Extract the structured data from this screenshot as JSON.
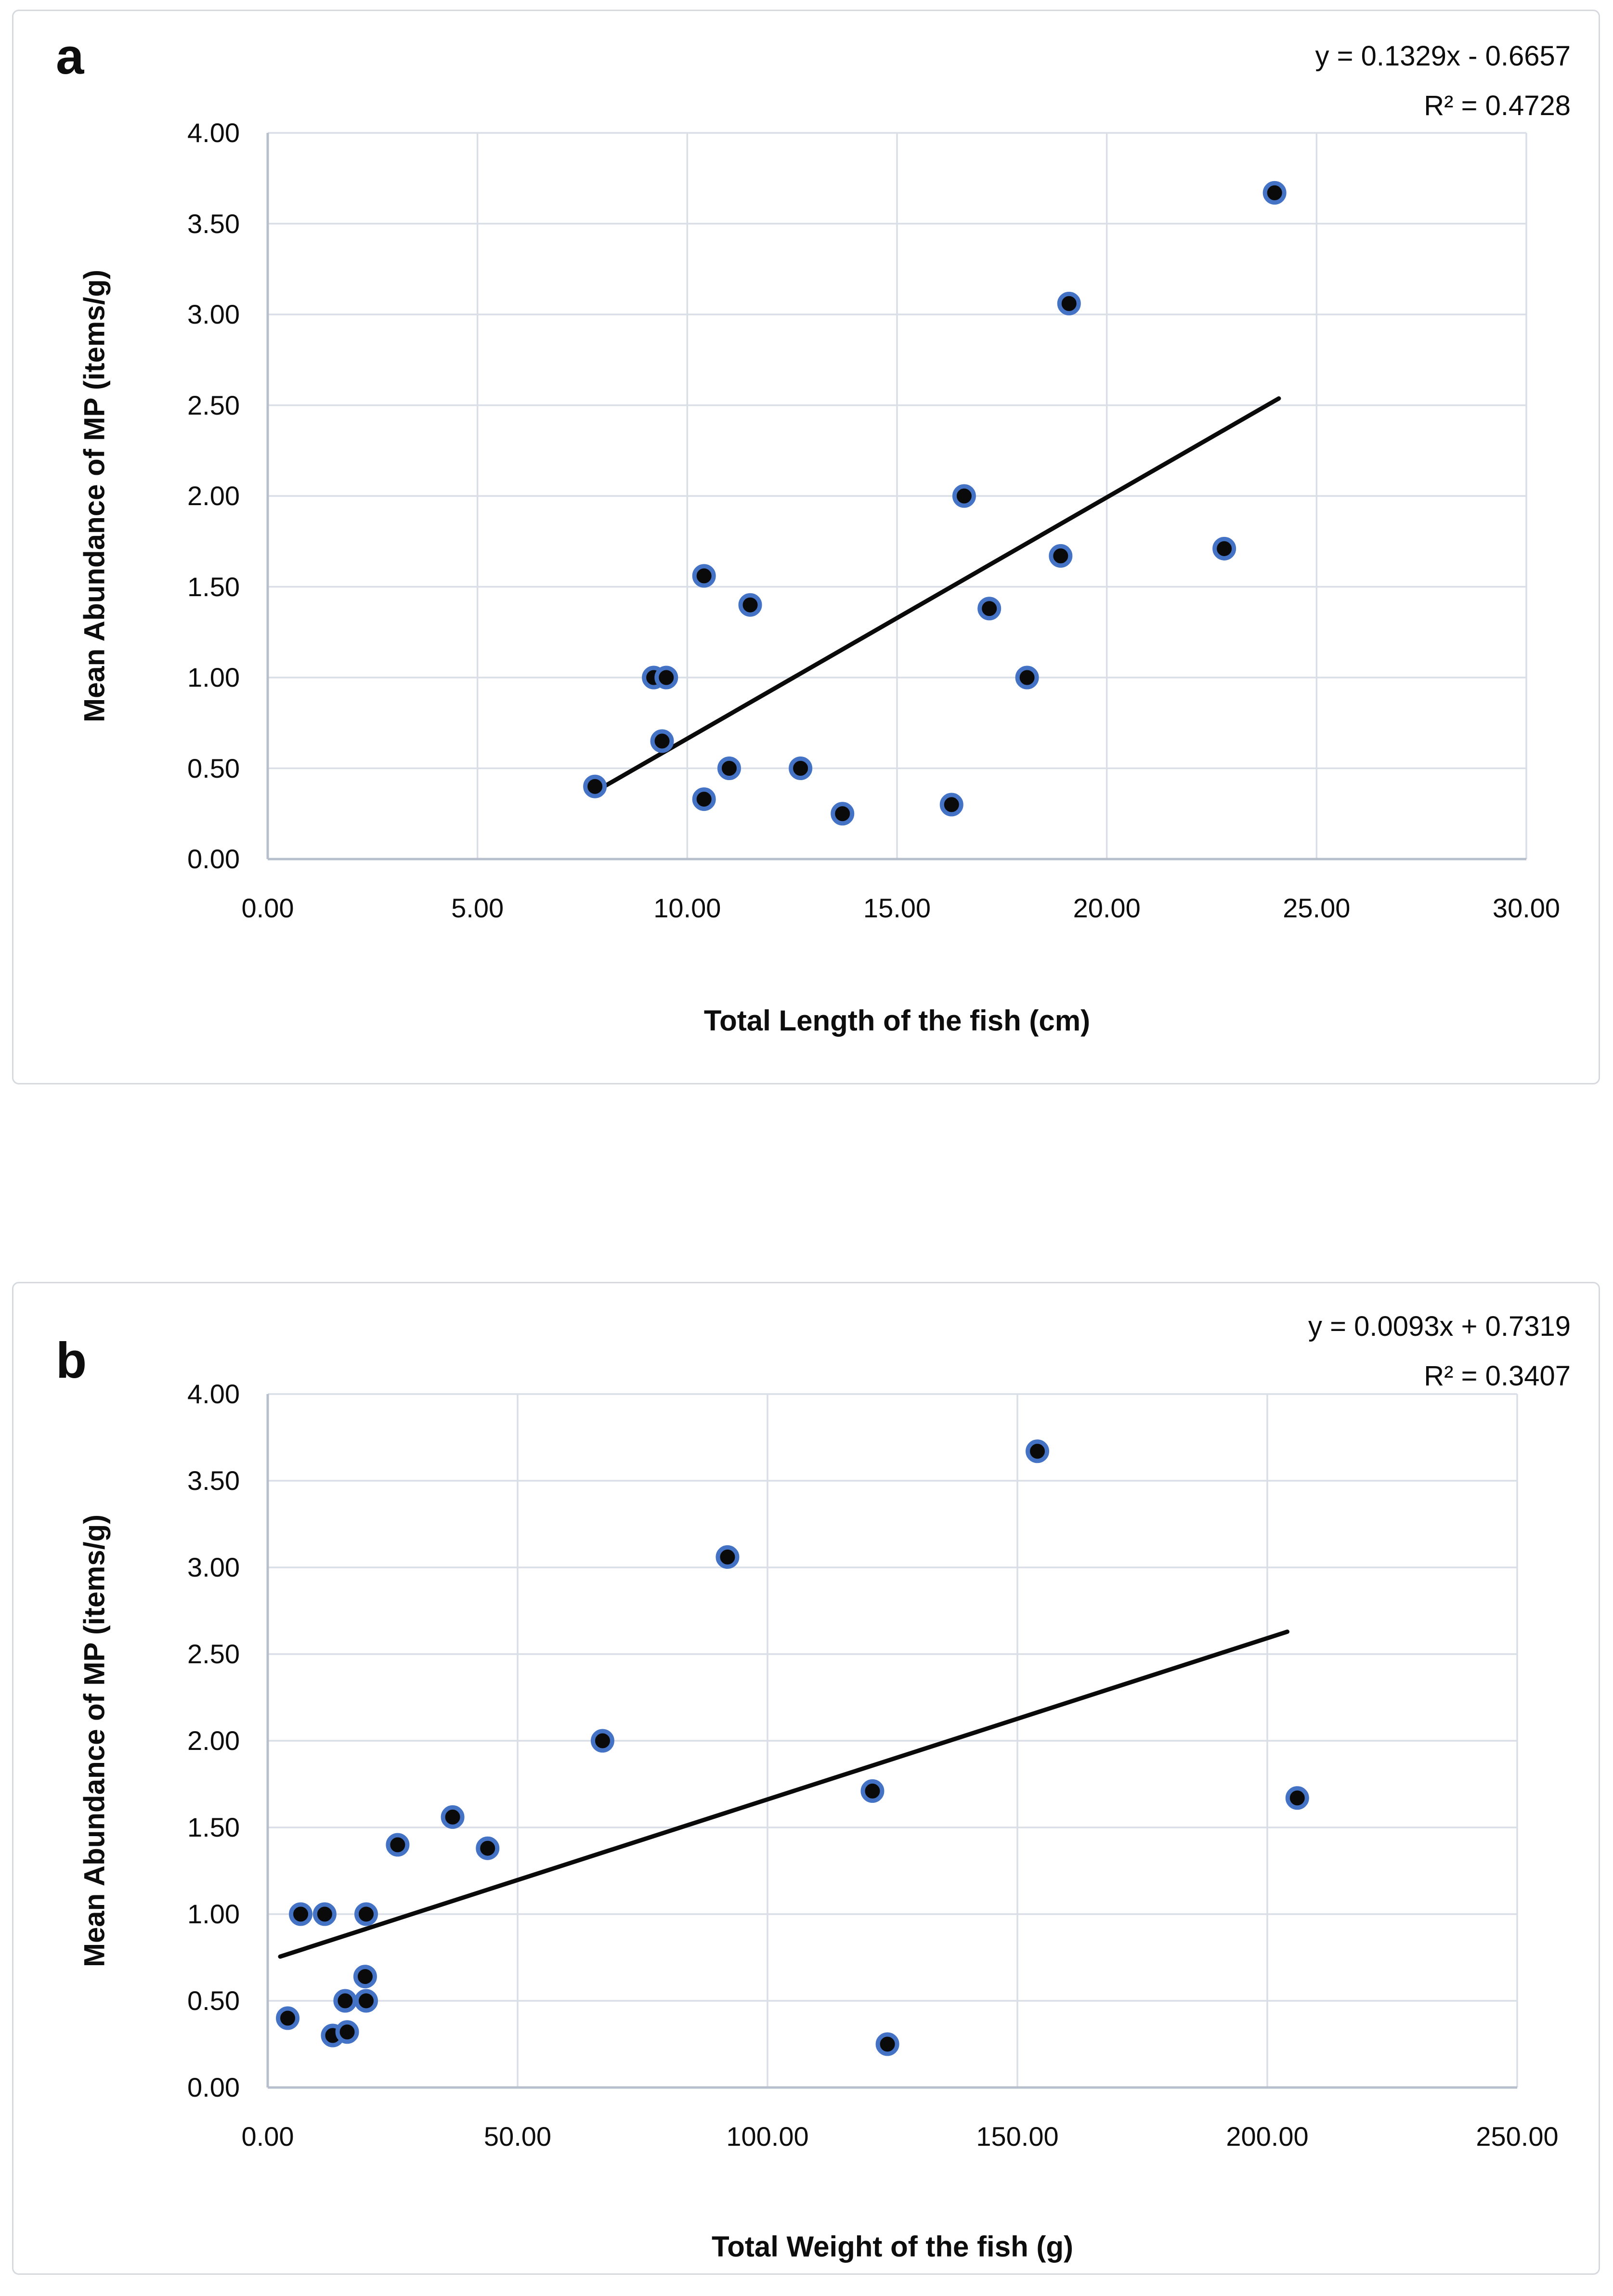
{
  "colors": {
    "marker_ring": "#4472C4",
    "marker_fill": "#0a0a0a",
    "gridline": "#dadfe7",
    "axis_line": "#b7bfcc",
    "trendline": "#0a0a0a",
    "panel_border": "#d6d9de",
    "text": "#0d0d0d"
  },
  "chart_data": [
    {
      "type": "scatter",
      "panel_label": "a",
      "annotation_line1": "y = 0.1329x - 0.6657",
      "annotation_line2": "R² = 0.4728",
      "xlabel": "Total Length of the fish (cm)",
      "ylabel": "Mean Abundance of MP (items/g)",
      "xlim": [
        0,
        30
      ],
      "ylim": [
        0,
        4
      ],
      "x_tick_labels": [
        "0.00",
        "5.00",
        "10.00",
        "15.00",
        "20.00",
        "25.00",
        "30.00"
      ],
      "y_tick_labels": [
        "4.00",
        "3.50",
        "3.00",
        "2.50",
        "2.00",
        "1.50",
        "1.00",
        "0.50",
        "0.00"
      ],
      "grid": true,
      "legend": false,
      "points": [
        [
          7.8,
          0.4
        ],
        [
          9.2,
          1.0
        ],
        [
          9.4,
          0.65
        ],
        [
          9.5,
          1.0
        ],
        [
          10.4,
          0.33
        ],
        [
          10.4,
          1.56
        ],
        [
          11.0,
          0.5
        ],
        [
          11.5,
          1.4
        ],
        [
          12.7,
          0.5
        ],
        [
          13.7,
          0.25
        ],
        [
          16.3,
          0.3
        ],
        [
          16.6,
          2.0
        ],
        [
          17.2,
          1.38
        ],
        [
          18.1,
          1.0
        ],
        [
          18.9,
          1.67
        ],
        [
          19.1,
          3.06
        ],
        [
          22.8,
          1.71
        ],
        [
          24.0,
          3.67
        ]
      ],
      "trendline": {
        "slope": 0.1329,
        "intercept": -0.6657,
        "r_squared": 0.4728,
        "x_start": 7.75,
        "x_end": 24.1
      }
    },
    {
      "type": "scatter",
      "panel_label": "b",
      "annotation_line1": "y = 0.0093x + 0.7319",
      "annotation_line2": "R² = 0.3407",
      "xlabel": "Total Weight of the fish (g)",
      "ylabel": "Mean Abundance of MP (items/g)",
      "xlim": [
        0,
        250
      ],
      "ylim": [
        0,
        4
      ],
      "x_tick_labels": [
        "0.00",
        "50.00",
        "100.00",
        "150.00",
        "200.00",
        "250.00"
      ],
      "y_tick_labels": [
        "4.00",
        "3.50",
        "3.00",
        "2.50",
        "2.00",
        "1.50",
        "1.00",
        "0.50",
        "0.00"
      ],
      "grid": true,
      "legend": false,
      "points": [
        [
          4,
          0.4
        ],
        [
          6.6,
          1.0
        ],
        [
          11.4,
          1.0
        ],
        [
          13,
          0.3
        ],
        [
          15.5,
          0.5
        ],
        [
          15.9,
          0.32
        ],
        [
          19.5,
          0.64
        ],
        [
          19.7,
          0.5
        ],
        [
          19.7,
          1.0
        ],
        [
          26,
          1.4
        ],
        [
          37,
          1.56
        ],
        [
          44,
          1.38
        ],
        [
          67,
          2.0
        ],
        [
          92,
          3.06
        ],
        [
          121,
          1.71
        ],
        [
          124,
          0.25
        ],
        [
          154,
          3.67
        ],
        [
          206,
          1.67
        ]
      ],
      "trendline": {
        "slope": 0.0093,
        "intercept": 0.7319,
        "r_squared": 0.3407,
        "x_start": 2.5,
        "x_end": 204
      }
    }
  ]
}
